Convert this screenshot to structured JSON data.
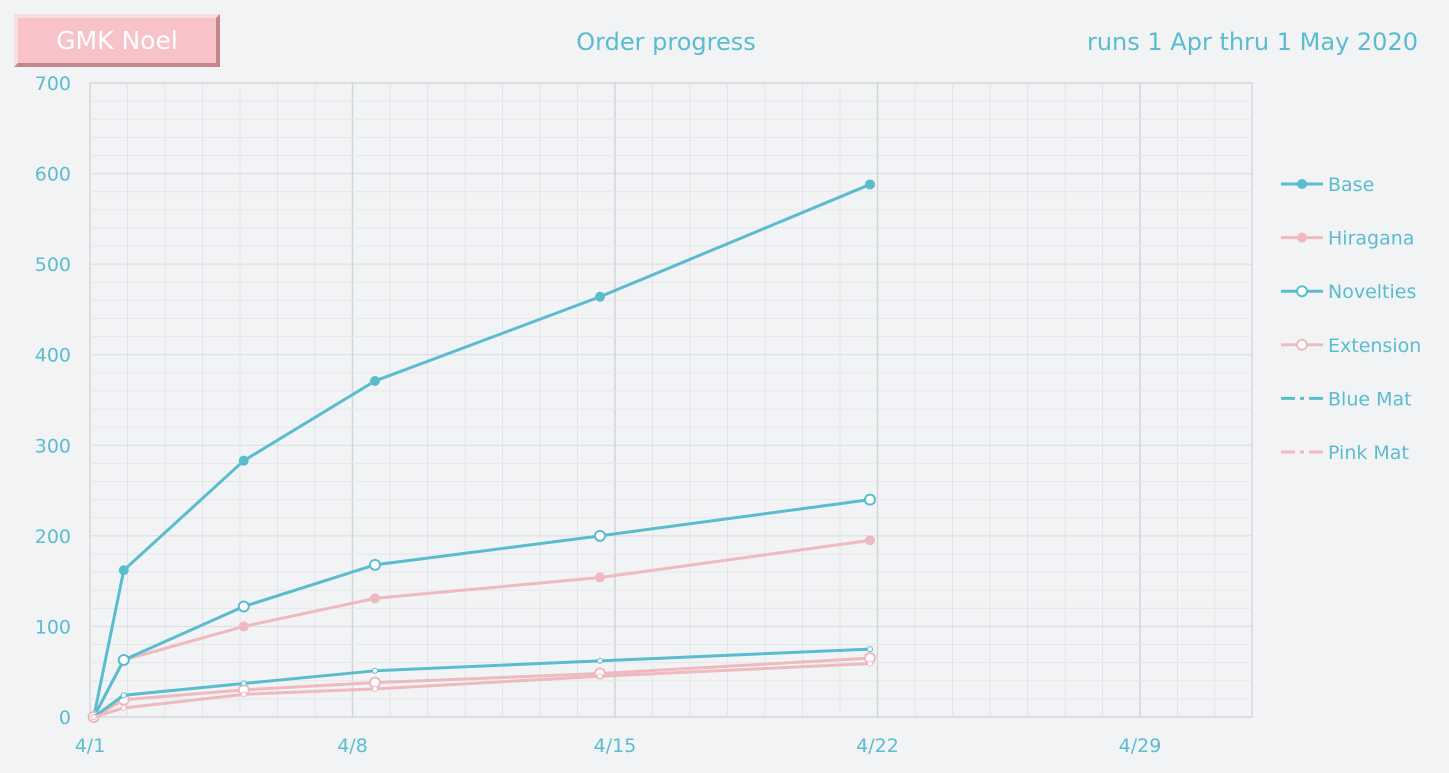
{
  "header": {
    "badge": "GMK Noel",
    "title": "Order progress",
    "subtitle": "runs 1 Apr thru 1 May 2020"
  },
  "chart_data": {
    "type": "line",
    "title": "Order progress",
    "xlabel": "",
    "ylabel": "",
    "x_range_days": [
      1,
      31
    ],
    "x_ticks": [
      {
        "day": 1,
        "label": "4/1"
      },
      {
        "day": 8,
        "label": "4/8"
      },
      {
        "day": 15,
        "label": "4/15"
      },
      {
        "day": 22,
        "label": "4/22"
      },
      {
        "day": 29,
        "label": "4/29"
      }
    ],
    "ylim": [
      0,
      700
    ],
    "y_ticks": [
      0,
      100,
      200,
      300,
      400,
      500,
      600,
      700
    ],
    "grid": true,
    "legend": "right",
    "x": [
      1.1,
      1.9,
      5.1,
      8.6,
      14.6,
      21.8
    ],
    "series": [
      {
        "name": "Base",
        "color": "#5bbccf",
        "marker": "filled-circle",
        "dash": "solid",
        "values": [
          0,
          162,
          283,
          371,
          464,
          588
        ]
      },
      {
        "name": "Hiragana",
        "color": "#efb9c0",
        "marker": "filled-circle",
        "dash": "solid",
        "values": [
          0,
          63,
          100,
          131,
          154,
          195
        ]
      },
      {
        "name": "Novelties",
        "color": "#5bbccf",
        "marker": "hollow-circle",
        "dash": "solid",
        "values": [
          0,
          63,
          122,
          168,
          200,
          240
        ]
      },
      {
        "name": "Extension",
        "color": "#efb9c0",
        "marker": "hollow-circle",
        "dash": "solid",
        "values": [
          0,
          19,
          30,
          38,
          48,
          65
        ]
      },
      {
        "name": "Blue Mat",
        "color": "#5bbccf",
        "marker": "small-dot",
        "dash": "dashdot",
        "values": [
          0,
          24,
          37,
          51,
          62,
          75
        ]
      },
      {
        "name": "Pink Mat",
        "color": "#efb9c0",
        "marker": "small-dot",
        "dash": "dashdot",
        "values": [
          0,
          10,
          25,
          31,
          45,
          59
        ]
      }
    ]
  }
}
